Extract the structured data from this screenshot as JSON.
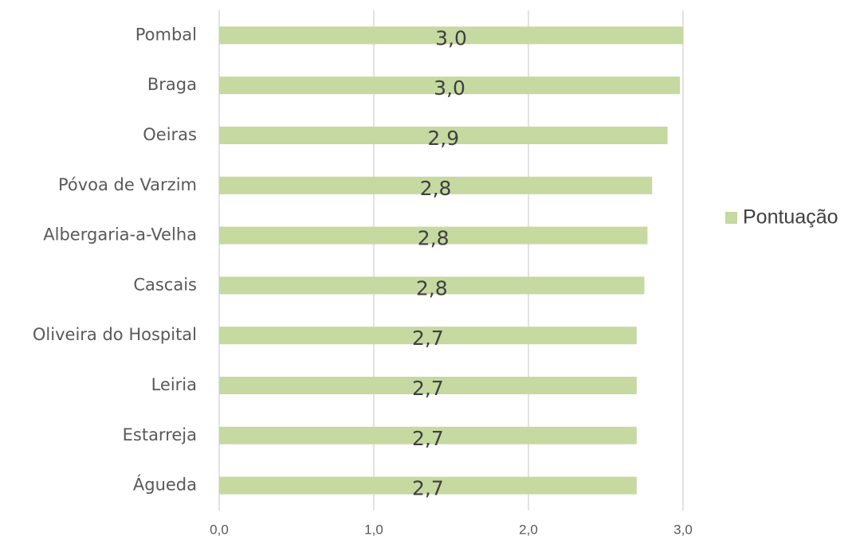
{
  "chart_data": {
    "type": "bar",
    "orientation": "horizontal",
    "categories": [
      "Pombal",
      "Braga",
      "Oeiras",
      "Póvoa de Varzim",
      "Albergaria-a-Velha",
      "Cascais",
      "Oliveira do Hospital",
      "Leiria",
      "Estarreja",
      "Águeda"
    ],
    "series": [
      {
        "name": "Pontuação",
        "color": "#c5d9a0",
        "values": [
          3.0,
          2.98,
          2.9,
          2.8,
          2.77,
          2.75,
          2.7,
          2.7,
          2.7,
          2.7
        ],
        "value_labels": [
          "3,0",
          "3,0",
          "2,9",
          "2,8",
          "2,8",
          "2,8",
          "2,7",
          "2,7",
          "2,7",
          "2,7"
        ]
      }
    ],
    "xlim": [
      0,
      3
    ],
    "xticks": [
      {
        "value": 0,
        "label": "0,0"
      },
      {
        "value": 1,
        "label": "1,0"
      },
      {
        "value": 2,
        "label": "2,0"
      },
      {
        "value": 3,
        "label": "3,0"
      }
    ],
    "grid": true,
    "legend": "right"
  }
}
